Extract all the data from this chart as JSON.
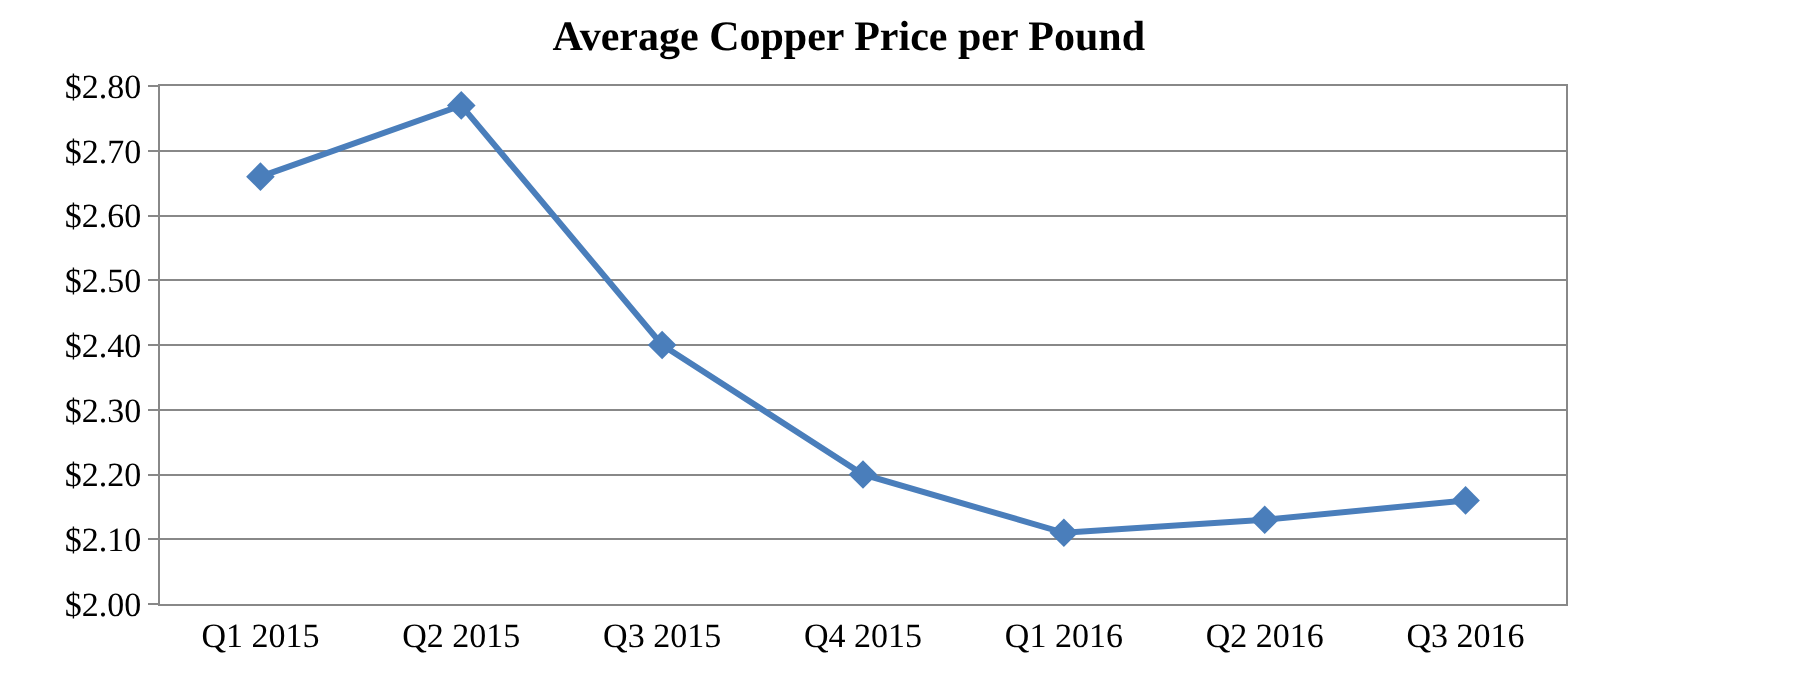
{
  "chart_data": {
    "type": "line",
    "title": "Average Copper Price per Pound",
    "categories": [
      "Q1 2015",
      "Q2 2015",
      "Q3 2015",
      "Q4 2015",
      "Q1 2016",
      "Q2 2016",
      "Q3 2016"
    ],
    "series": [
      {
        "color": "#4a7ebb",
        "values": [
          2.66,
          2.77,
          2.4,
          2.2,
          2.11,
          2.13,
          2.16
        ]
      }
    ],
    "ylim": [
      2.0,
      2.8
    ],
    "yticks": [
      {
        "value": 2.0,
        "label": "$2.00"
      },
      {
        "value": 2.1,
        "label": "$2.10"
      },
      {
        "value": 2.2,
        "label": "$2.20"
      },
      {
        "value": 2.3,
        "label": "$2.30"
      },
      {
        "value": 2.4,
        "label": "$2.40"
      },
      {
        "value": 2.5,
        "label": "$2.50"
      },
      {
        "value": 2.6,
        "label": "$2.60"
      },
      {
        "value": 2.7,
        "label": "$2.70"
      },
      {
        "value": 2.8,
        "label": "$2.80"
      }
    ],
    "grid": "y",
    "marker": "diamond",
    "line_style": "solid"
  }
}
